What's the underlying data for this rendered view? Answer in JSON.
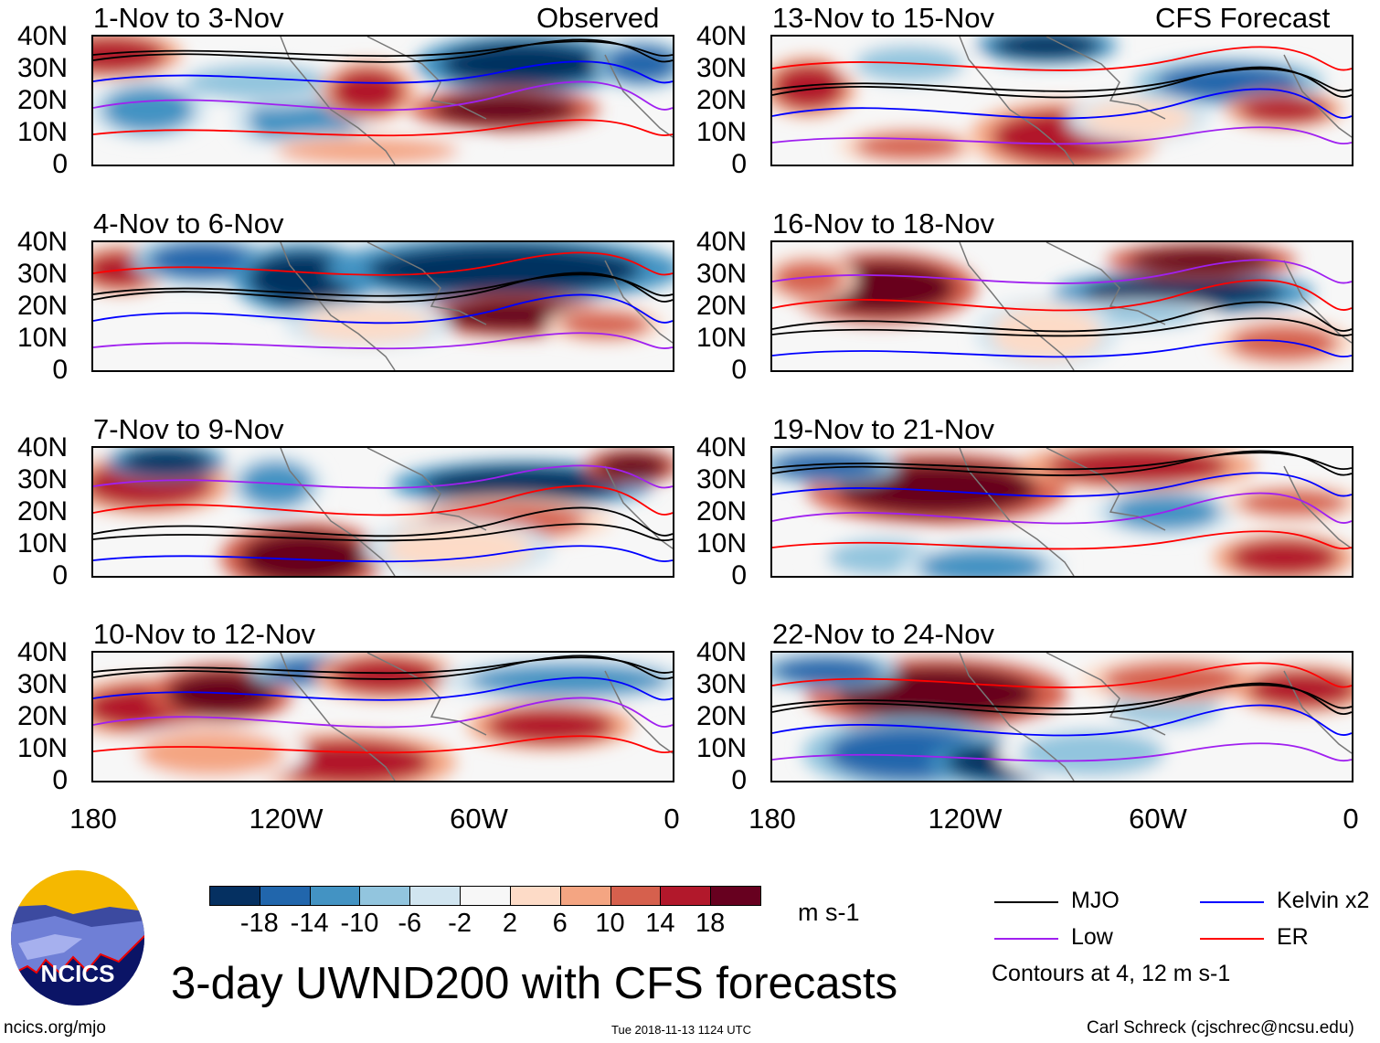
{
  "title": "3-day UWND200 with CFS forecasts",
  "observed_label": "Observed",
  "forecast_label": "CFS Forecast",
  "panels": [
    {
      "title": "1-Nov to 3-Nov",
      "kind": "observed"
    },
    {
      "title": "4-Nov to 6-Nov",
      "kind": "observed"
    },
    {
      "title": "7-Nov to 9-Nov",
      "kind": "observed"
    },
    {
      "title": "10-Nov to 12-Nov",
      "kind": "observed"
    },
    {
      "title": "13-Nov to 15-Nov",
      "kind": "forecast"
    },
    {
      "title": "16-Nov to 18-Nov",
      "kind": "forecast"
    },
    {
      "title": "19-Nov to 21-Nov",
      "kind": "forecast"
    },
    {
      "title": "22-Nov to 24-Nov",
      "kind": "forecast"
    }
  ],
  "lat_labels": [
    "40N",
    "30N",
    "20N",
    "10N",
    "0"
  ],
  "lon_labels": [
    "180",
    "120W",
    "60W",
    "0"
  ],
  "colorbar": {
    "colors": [
      "#053061",
      "#2166ac",
      "#4393c3",
      "#92c5de",
      "#d1e5f0",
      "#f7f7f7",
      "#fddbc7",
      "#f4a582",
      "#d6604d",
      "#b2182b",
      "#67001f"
    ],
    "labels": [
      "-18",
      "-14",
      "-10",
      "-6",
      "-2",
      "2",
      "6",
      "10",
      "14",
      "18"
    ],
    "units": "m s-1"
  },
  "legend": [
    {
      "label": "MJO",
      "color": "#000000"
    },
    {
      "label": "Kelvin x2",
      "color": "#0000ff"
    },
    {
      "label": "Low",
      "color": "#a020f0"
    },
    {
      "label": "ER",
      "color": "#ff0000"
    }
  ],
  "contour_note": "Contours at 4, 12 m s-1",
  "logo_text": "NCICS",
  "footer": {
    "url": "ncics.org/mjo",
    "timestamp": "Tue 2018-11-13 1124 UTC",
    "credit": "Carl Schreck (cjschrec@ncsu.edu)"
  }
}
